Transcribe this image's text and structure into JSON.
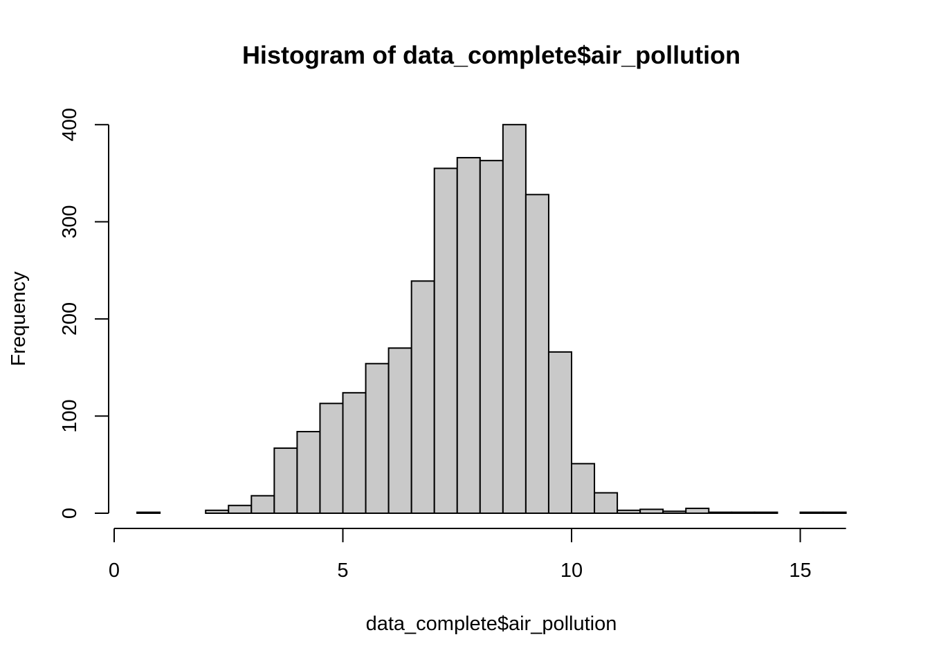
{
  "chart_data": {
    "type": "bar",
    "title": "Histogram of data_complete$air_pollution",
    "xlabel": "data_complete$air_pollution",
    "ylabel": "Frequency",
    "xlim": [
      0,
      16
    ],
    "ylim": [
      0,
      400
    ],
    "x_ticks": [
      0,
      5,
      10,
      15
    ],
    "y_ticks": [
      0,
      100,
      200,
      300,
      400
    ],
    "bin_width": 0.5,
    "bins": [
      {
        "start": 0.5,
        "end": 1.0,
        "count": 1
      },
      {
        "start": 1.0,
        "end": 1.5,
        "count": 0
      },
      {
        "start": 1.5,
        "end": 2.0,
        "count": 0
      },
      {
        "start": 2.0,
        "end": 2.5,
        "count": 3
      },
      {
        "start": 2.5,
        "end": 3.0,
        "count": 8
      },
      {
        "start": 3.0,
        "end": 3.5,
        "count": 18
      },
      {
        "start": 3.5,
        "end": 4.0,
        "count": 67
      },
      {
        "start": 4.0,
        "end": 4.5,
        "count": 84
      },
      {
        "start": 4.5,
        "end": 5.0,
        "count": 113
      },
      {
        "start": 5.0,
        "end": 5.5,
        "count": 124
      },
      {
        "start": 5.5,
        "end": 6.0,
        "count": 154
      },
      {
        "start": 6.0,
        "end": 6.5,
        "count": 170
      },
      {
        "start": 6.5,
        "end": 7.0,
        "count": 239
      },
      {
        "start": 7.0,
        "end": 7.5,
        "count": 355
      },
      {
        "start": 7.5,
        "end": 8.0,
        "count": 366
      },
      {
        "start": 8.0,
        "end": 8.5,
        "count": 363
      },
      {
        "start": 8.5,
        "end": 9.0,
        "count": 400
      },
      {
        "start": 9.0,
        "end": 9.5,
        "count": 328
      },
      {
        "start": 9.5,
        "end": 10.0,
        "count": 166
      },
      {
        "start": 10.0,
        "end": 10.5,
        "count": 51
      },
      {
        "start": 10.5,
        "end": 11.0,
        "count": 21
      },
      {
        "start": 11.0,
        "end": 11.5,
        "count": 3
      },
      {
        "start": 11.5,
        "end": 12.0,
        "count": 4
      },
      {
        "start": 12.0,
        "end": 12.5,
        "count": 2
      },
      {
        "start": 12.5,
        "end": 13.0,
        "count": 5
      },
      {
        "start": 13.0,
        "end": 13.5,
        "count": 1
      },
      {
        "start": 13.5,
        "end": 14.0,
        "count": 1
      },
      {
        "start": 14.0,
        "end": 14.5,
        "count": 1
      },
      {
        "start": 14.5,
        "end": 15.0,
        "count": 0
      },
      {
        "start": 15.0,
        "end": 15.5,
        "count": 1
      },
      {
        "start": 15.5,
        "end": 16.0,
        "count": 1
      }
    ],
    "grid": false,
    "legend": "none",
    "bar_fill_color": "#c9c9c9",
    "bar_edge_color": "#000000"
  }
}
